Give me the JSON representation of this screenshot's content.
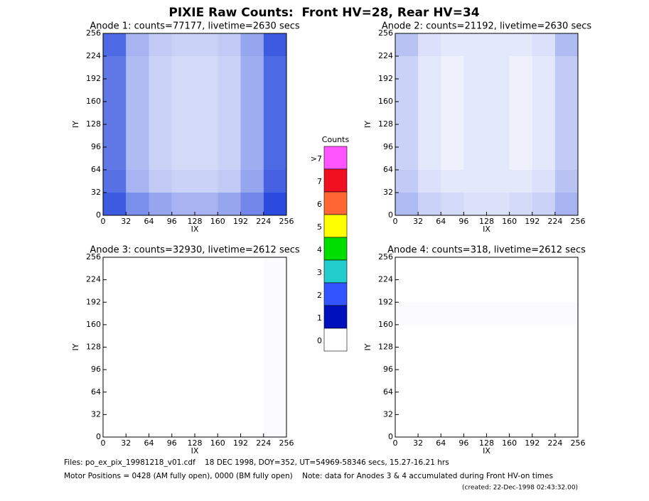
{
  "title": "PIXIE Raw Counts:  Front HV=28, Rear HV=34",
  "chart_data": [
    {
      "type": "heatmap",
      "title": "Anode 1: counts=77177, livetime=2630 secs",
      "xlabel": "IX",
      "ylabel": "IY",
      "xlim": [
        0,
        256
      ],
      "ylim": [
        0,
        256
      ],
      "xticks": [
        0,
        32,
        64,
        96,
        128,
        160,
        192,
        224,
        256
      ],
      "yticks": [
        0,
        32,
        64,
        96,
        128,
        160,
        192,
        224,
        256
      ],
      "z": [
        [
          2.0,
          1.0,
          0.7,
          0.6,
          0.6,
          0.7,
          1.2,
          2.2
        ],
        [
          1.8,
          0.9,
          0.6,
          0.5,
          0.5,
          0.6,
          1.1,
          2.0
        ],
        [
          1.8,
          0.9,
          0.6,
          0.5,
          0.5,
          0.6,
          1.1,
          2.0
        ],
        [
          1.8,
          0.9,
          0.6,
          0.5,
          0.5,
          0.6,
          1.1,
          2.0
        ],
        [
          1.8,
          0.9,
          0.6,
          0.5,
          0.5,
          0.6,
          1.1,
          2.0
        ],
        [
          1.8,
          0.9,
          0.6,
          0.5,
          0.5,
          0.6,
          1.1,
          2.0
        ],
        [
          1.9,
          1.0,
          0.7,
          0.6,
          0.6,
          0.7,
          1.2,
          2.1
        ],
        [
          2.2,
          1.5,
          1.2,
          1.0,
          1.0,
          1.2,
          1.6,
          2.4
        ]
      ]
    },
    {
      "type": "heatmap",
      "title": "Anode 2: counts=21192, livetime=2630 secs",
      "xlabel": "IX",
      "ylabel": "IY",
      "xlim": [
        0,
        256
      ],
      "ylim": [
        0,
        256
      ],
      "xticks": [
        0,
        32,
        64,
        96,
        128,
        160,
        192,
        224,
        256
      ],
      "yticks": [
        0,
        32,
        64,
        96,
        128,
        160,
        192,
        224,
        256
      ],
      "z": [
        [
          0.8,
          0.4,
          0.3,
          0.3,
          0.3,
          0.3,
          0.4,
          0.9
        ],
        [
          0.6,
          0.3,
          0.2,
          0.3,
          0.3,
          0.2,
          0.3,
          0.7
        ],
        [
          0.6,
          0.3,
          0.2,
          0.3,
          0.3,
          0.2,
          0.3,
          0.7
        ],
        [
          0.6,
          0.3,
          0.2,
          0.3,
          0.3,
          0.2,
          0.3,
          0.7
        ],
        [
          0.6,
          0.3,
          0.2,
          0.3,
          0.3,
          0.2,
          0.3,
          0.7
        ],
        [
          0.6,
          0.3,
          0.2,
          0.3,
          0.3,
          0.2,
          0.3,
          0.7
        ],
        [
          0.7,
          0.4,
          0.3,
          0.3,
          0.3,
          0.3,
          0.4,
          0.8
        ],
        [
          0.9,
          0.6,
          0.5,
          0.4,
          0.4,
          0.5,
          0.6,
          1.0
        ]
      ]
    },
    {
      "type": "heatmap",
      "title": "Anode 3: counts=32930, livetime=2612 secs",
      "xlabel": "IX",
      "ylabel": "IY",
      "xlim": [
        0,
        256
      ],
      "ylim": [
        0,
        256
      ],
      "xticks": [
        0,
        32,
        64,
        96,
        128,
        160,
        192,
        224,
        256
      ],
      "yticks": [
        0,
        32,
        64,
        96,
        128,
        160,
        192,
        224,
        256
      ],
      "z": [
        [
          0,
          0,
          0,
          0,
          0,
          0,
          0,
          0.05
        ],
        [
          0,
          0,
          0,
          0,
          0,
          0,
          0,
          0.05
        ],
        [
          0,
          0,
          0,
          0,
          0,
          0,
          0,
          0.05
        ],
        [
          0,
          0,
          0,
          0,
          0,
          0,
          0,
          0.05
        ],
        [
          0,
          0,
          0,
          0,
          0,
          0,
          0,
          0.05
        ],
        [
          0,
          0,
          0,
          0,
          0,
          0,
          0,
          0.05
        ],
        [
          0,
          0,
          0,
          0,
          0,
          0,
          0,
          0.05
        ],
        [
          0,
          0,
          0,
          0,
          0,
          0,
          0,
          0.05
        ]
      ]
    },
    {
      "type": "heatmap",
      "title": "Anode 4: counts=318, livetime=2612 secs",
      "xlabel": "IX",
      "ylabel": "IY",
      "xlim": [
        0,
        256
      ],
      "ylim": [
        0,
        256
      ],
      "xticks": [
        0,
        32,
        64,
        96,
        128,
        160,
        192,
        224,
        256
      ],
      "yticks": [
        0,
        32,
        64,
        96,
        128,
        160,
        192,
        224,
        256
      ],
      "z": [
        [
          0,
          0,
          0,
          0,
          0,
          0,
          0,
          0
        ],
        [
          0,
          0,
          0,
          0,
          0,
          0,
          0,
          0
        ],
        [
          0.05,
          0.05,
          0.05,
          0.05,
          0.05,
          0.05,
          0.05,
          0.05
        ],
        [
          0,
          0,
          0,
          0,
          0,
          0,
          0,
          0
        ],
        [
          0,
          0,
          0,
          0,
          0,
          0,
          0,
          0
        ],
        [
          0,
          0,
          0,
          0,
          0,
          0,
          0,
          0
        ],
        [
          0,
          0,
          0,
          0,
          0,
          0,
          0,
          0
        ],
        [
          0,
          0,
          0,
          0,
          0,
          0,
          0,
          0
        ]
      ]
    }
  ],
  "colorbar": {
    "title": "Counts",
    "labels": [
      ">7",
      "7",
      "6",
      "5",
      "4",
      "3",
      "2",
      "1",
      "0"
    ],
    "colors": [
      "#ff55ff",
      "#f01020",
      "#ff6633",
      "#ffff00",
      "#00dd00",
      "#22cccc",
      "#3355ff",
      "#0011bb",
      "#ffffff"
    ]
  },
  "footer": [
    "Files: po_ex_pix_19981218_v01.cdf    18 DEC 1998, DOY=352, UT=54969-58346 secs, 15.27-16.21 hrs",
    "Motor Positions = 0428 (AM fully open), 0000 (BM fully open)    Note: data for Anodes 3 & 4 accumulated during Front HV-on times",
    "(created: 22-Dec-1998 02:43:32.00)"
  ]
}
